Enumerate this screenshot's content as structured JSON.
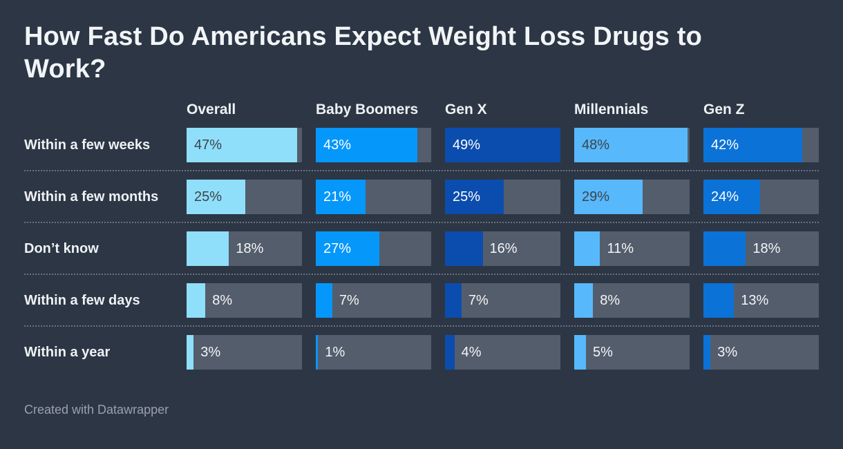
{
  "chart_data": {
    "type": "bar",
    "variant": "small-multiple-horizontal-bars",
    "title": "How Fast Do Americans Expect Weight Loss Drugs to Work?",
    "categories": [
      "Within a few weeks",
      "Within a few months",
      "Don’t know",
      "Within a few days",
      "Within a year"
    ],
    "series": [
      {
        "name": "Overall",
        "color": "#8fdffa",
        "inside_label_color": "#3c434c",
        "values": [
          47,
          25,
          18,
          8,
          3
        ]
      },
      {
        "name": "Baby Boomers",
        "color": "#0697fb",
        "inside_label_color": "#ffffff",
        "values": [
          43,
          21,
          27,
          7,
          1
        ]
      },
      {
        "name": "Gen X",
        "color": "#0b4dae",
        "inside_label_color": "#ffffff",
        "values": [
          49,
          25,
          16,
          7,
          4
        ]
      },
      {
        "name": "Millennials",
        "color": "#57b9fc",
        "inside_label_color": "#3c434c",
        "values": [
          48,
          29,
          11,
          8,
          5
        ]
      },
      {
        "name": "Gen Z",
        "color": "#0b72d8",
        "inside_label_color": "#ffffff",
        "values": [
          42,
          24,
          18,
          13,
          3
        ]
      }
    ],
    "value_suffix": "%",
    "axis_max": 49,
    "inside_label_min_value": 20,
    "colors": {
      "background": "#2d3644",
      "track": "#545d6c",
      "title_text": "#f2f5f7",
      "label_text": "#eef2f5",
      "outside_value_text": "#f4f6f8",
      "divider": "#6c7482",
      "footer_text": "#99a1ab"
    },
    "layout": {
      "legend": "column-headers",
      "row_separators": "dotted",
      "value_labels": "inside-or-right",
      "grid": "off"
    }
  },
  "footer": {
    "attribution": "Created with Datawrapper"
  }
}
